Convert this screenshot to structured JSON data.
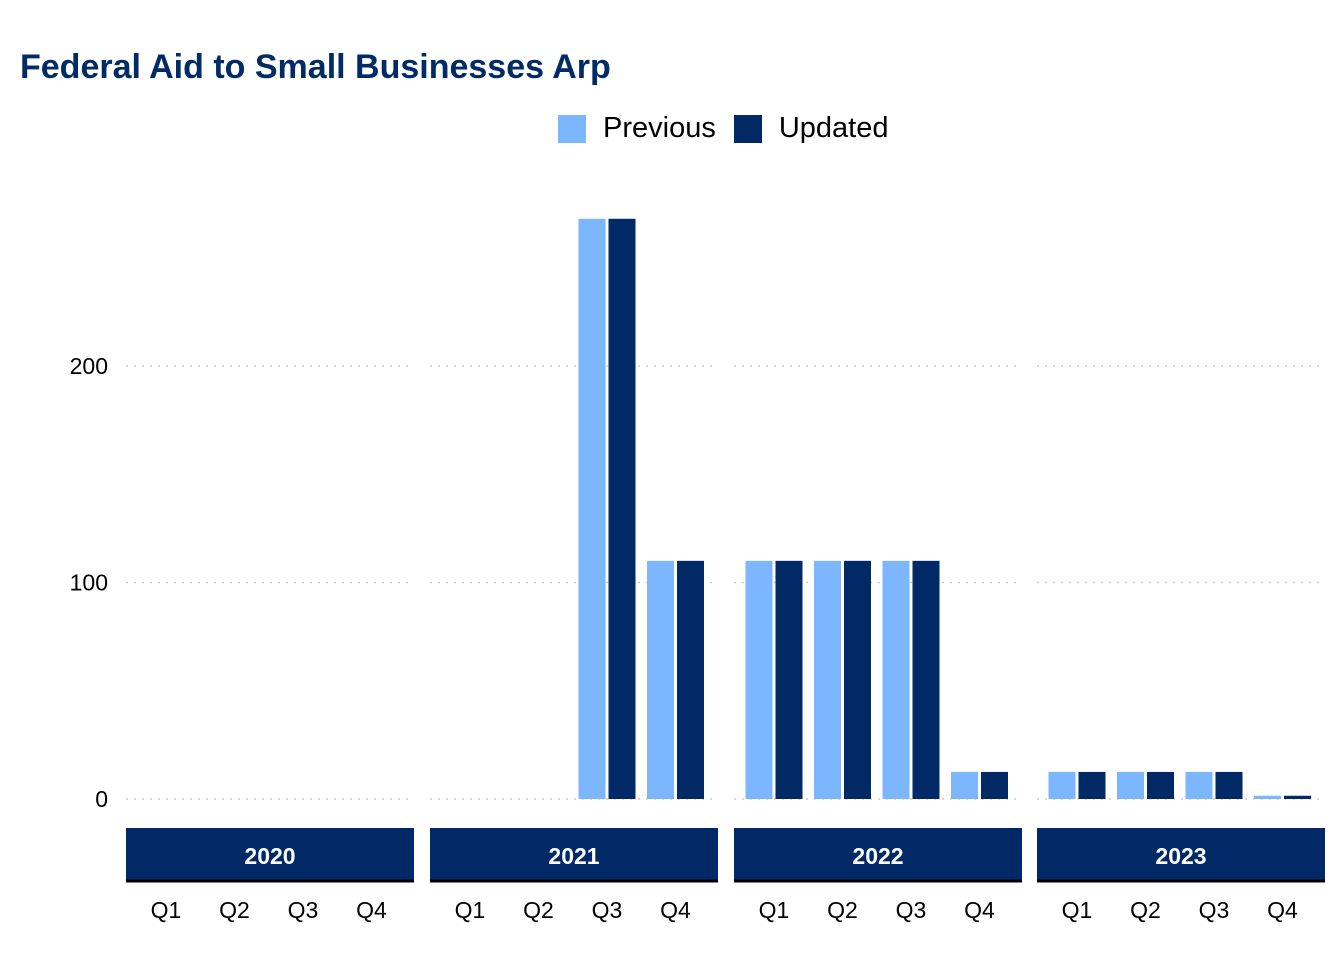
{
  "title": "Federal Aid to Small Businesses Arp",
  "chart_data": {
    "type": "bar",
    "title": "Federal Aid to Small Businesses Arp",
    "xlabel": "",
    "ylabel": "",
    "ylim": [
      -30,
      270
    ],
    "yticks": [
      0,
      100,
      200
    ],
    "grid": "horizontal-dotted",
    "legend_position": "top-center",
    "facets": [
      "2020",
      "2021",
      "2022",
      "2023"
    ],
    "categories": [
      "Q1",
      "Q2",
      "Q3",
      "Q4"
    ],
    "series": [
      {
        "name": "Previous",
        "color": "#7bb6ff",
        "values": [
          [
            0,
            0,
            0,
            0
          ],
          [
            0,
            0,
            268,
            110
          ],
          [
            110,
            110,
            110,
            12.5
          ],
          [
            12.5,
            12.5,
            12.5,
            1.5
          ]
        ]
      },
      {
        "name": "Updated",
        "color": "#002966",
        "values": [
          [
            0,
            0,
            0,
            0
          ],
          [
            0,
            0,
            268,
            110
          ],
          [
            110,
            110,
            110,
            12.5
          ],
          [
            12.5,
            12.5,
            12.5,
            1.5
          ]
        ]
      }
    ]
  },
  "colors": {
    "title": "#002b66",
    "strip_fill": "#002966",
    "strip_text": "#ffffff",
    "grid": "#cccccc"
  }
}
